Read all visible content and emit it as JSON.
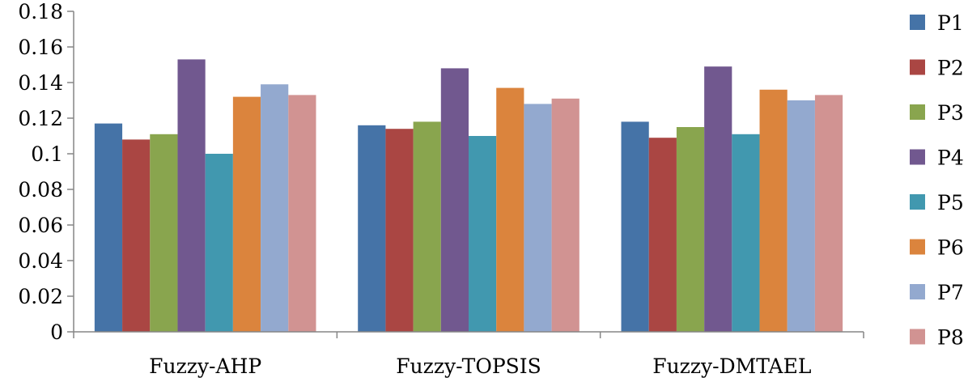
{
  "chart_data": {
    "type": "bar",
    "title": "",
    "xlabel": "",
    "ylabel": "",
    "ylim": [
      0,
      0.18
    ],
    "ytick_values": [
      0,
      0.02,
      0.04,
      0.06,
      0.08,
      0.1,
      0.12,
      0.14,
      0.16,
      0.18
    ],
    "ytick_labels": [
      "0",
      "0.02",
      "0.04",
      "0.06",
      "0.08",
      "0.1",
      "0.12",
      "0.14",
      "0.16",
      "0.18"
    ],
    "grid": false,
    "legend_position": "right",
    "categories": [
      "Fuzzy-AHP",
      "Fuzzy-TOPSIS",
      "Fuzzy-DMTAEL"
    ],
    "series": [
      {
        "name": "P1",
        "color": "#4573A7",
        "values": [
          0.117,
          0.116,
          0.118
        ]
      },
      {
        "name": "P2",
        "color": "#AA4643",
        "values": [
          0.108,
          0.114,
          0.109
        ]
      },
      {
        "name": "P3",
        "color": "#89A54E",
        "values": [
          0.111,
          0.118,
          0.115
        ]
      },
      {
        "name": "P4",
        "color": "#71588F",
        "values": [
          0.153,
          0.148,
          0.149
        ]
      },
      {
        "name": "P5",
        "color": "#4198AF",
        "values": [
          0.1,
          0.11,
          0.111
        ]
      },
      {
        "name": "P6",
        "color": "#DB843D",
        "values": [
          0.132,
          0.137,
          0.136
        ]
      },
      {
        "name": "P7",
        "color": "#93A9CF",
        "values": [
          0.139,
          0.128,
          0.13
        ]
      },
      {
        "name": "P8",
        "color": "#D19392",
        "values": [
          0.133,
          0.131,
          0.133
        ]
      }
    ]
  }
}
